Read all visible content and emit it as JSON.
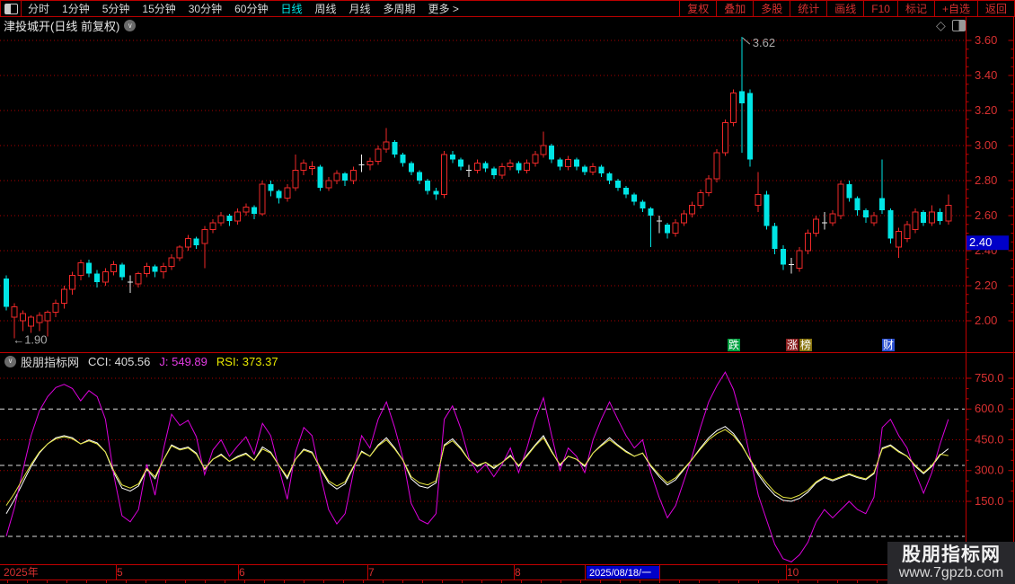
{
  "toolbar": {
    "left_items": [
      {
        "label": "分时",
        "active": false
      },
      {
        "label": "1分钟",
        "active": false
      },
      {
        "label": "5分钟",
        "active": false
      },
      {
        "label": "15分钟",
        "active": false
      },
      {
        "label": "30分钟",
        "active": false
      },
      {
        "label": "60分钟",
        "active": false
      },
      {
        "label": "日线",
        "active": true
      },
      {
        "label": "周线",
        "active": false
      },
      {
        "label": "月线",
        "active": false
      },
      {
        "label": "多周期",
        "active": false
      },
      {
        "label": "更多 >",
        "active": false
      }
    ],
    "right_items": [
      "复权",
      "叠加",
      "多股",
      "统计",
      "画线",
      "F10",
      "标记",
      "+自选",
      "返回"
    ]
  },
  "title_bar": {
    "title": "津投城开(日线 前复权)"
  },
  "price_panel": {
    "badges": [
      {
        "label": "跌",
        "bg": "#00a040"
      },
      {
        "label": "涨",
        "bg": "#8b1f1f"
      },
      {
        "label": "榜",
        "bg": "#8a7510"
      },
      {
        "label": "财",
        "bg": "#2a4fd0"
      }
    ],
    "last_price_box": "2.40"
  },
  "indicator_panel": {
    "header": {
      "source": "股朋指标网",
      "cci": "CCI: 405.56",
      "j": "J: 549.89",
      "rsi": "RSI: 373.37"
    }
  },
  "watermark": {
    "line1": "股朋指标网",
    "line2": "www.7gpzb.com"
  },
  "colors": {
    "up": "#ee2828",
    "down": "#00e5e5",
    "doji": "#eeeeee",
    "grid_red": "#aa0000",
    "axis_line": "#c00000",
    "axis_text": "#d83030",
    "ref_white": "#dddddd",
    "highlight_box": "#0000c8",
    "annotation": "#aaaaaa",
    "j_line": "#dd00dd",
    "rsi_line": "#e8e840",
    "cci_line": "#ffffff"
  },
  "chart_data": [
    {
      "type": "candlestick",
      "title": "津投城开 日线 前复权",
      "ylim": [
        1.83,
        3.64
      ],
      "y_ticks": [
        2.0,
        2.2,
        2.4,
        2.6,
        2.8,
        3.0,
        3.2,
        3.4,
        3.6
      ],
      "y_tick_labels": [
        "2.00",
        "2.20",
        "2.40",
        "2.60",
        "2.80",
        "3.00",
        "3.20",
        "3.40",
        "3.60"
      ],
      "grid": "dotted-red-horizontal",
      "annotations": {
        "high": {
          "text": "3.62",
          "price": 3.62,
          "bar": 89
        },
        "low": {
          "text": "←1.90",
          "price": 1.9,
          "bar": 1
        }
      },
      "last_price": {
        "label": "2.40",
        "value": 2.445
      },
      "x_axis": {
        "labels": [
          {
            "text": "2025年",
            "x": 4
          },
          {
            "text": "5",
            "x": 130
          },
          {
            "text": "6",
            "x": 266
          },
          {
            "text": "7",
            "x": 410
          },
          {
            "text": "8",
            "x": 573
          },
          {
            "text": "10",
            "x": 876
          }
        ],
        "highlight": {
          "text": "2025/08/18/一",
          "x": 653,
          "w": 81
        },
        "month_sep_x": [
          129,
          265,
          409,
          572,
          651,
          734,
          875,
          1020
        ]
      },
      "ohlc": [
        [
          2.24,
          2.26,
          2.06,
          2.08
        ],
        [
          2.02,
          2.1,
          1.9,
          2.08
        ],
        [
          2.0,
          2.06,
          1.94,
          2.04
        ],
        [
          1.97,
          2.03,
          1.93,
          2.02
        ],
        [
          1.99,
          2.05,
          1.94,
          2.03
        ],
        [
          2.0,
          2.06,
          1.91,
          2.05
        ],
        [
          2.05,
          2.12,
          2.02,
          2.1
        ],
        [
          2.1,
          2.2,
          2.07,
          2.18
        ],
        [
          2.18,
          2.28,
          2.15,
          2.26
        ],
        [
          2.26,
          2.35,
          2.23,
          2.33
        ],
        [
          2.33,
          2.35,
          2.25,
          2.27
        ],
        [
          2.27,
          2.29,
          2.19,
          2.22
        ],
        [
          2.22,
          2.3,
          2.2,
          2.28
        ],
        [
          2.28,
          2.34,
          2.26,
          2.32
        ],
        [
          2.32,
          2.33,
          2.23,
          2.25
        ],
        [
          2.22,
          2.26,
          2.16,
          2.22
        ],
        [
          2.21,
          2.28,
          2.19,
          2.27
        ],
        [
          2.27,
          2.33,
          2.25,
          2.31
        ],
        [
          2.31,
          2.32,
          2.25,
          2.28
        ],
        [
          2.28,
          2.33,
          2.24,
          2.31
        ],
        [
          2.31,
          2.38,
          2.29,
          2.36
        ],
        [
          2.36,
          2.43,
          2.34,
          2.42
        ],
        [
          2.42,
          2.49,
          2.4,
          2.47
        ],
        [
          2.47,
          2.48,
          2.41,
          2.43
        ],
        [
          2.44,
          2.54,
          2.3,
          2.52
        ],
        [
          2.52,
          2.58,
          2.5,
          2.56
        ],
        [
          2.56,
          2.62,
          2.54,
          2.6
        ],
        [
          2.6,
          2.61,
          2.54,
          2.57
        ],
        [
          2.57,
          2.64,
          2.55,
          2.62
        ],
        [
          2.62,
          2.67,
          2.6,
          2.65
        ],
        [
          2.65,
          2.66,
          2.58,
          2.61
        ],
        [
          2.61,
          2.8,
          2.6,
          2.78
        ],
        [
          2.78,
          2.8,
          2.71,
          2.74
        ],
        [
          2.74,
          2.75,
          2.67,
          2.7
        ],
        [
          2.7,
          2.78,
          2.68,
          2.76
        ],
        [
          2.76,
          2.95,
          2.74,
          2.86
        ],
        [
          2.86,
          2.92,
          2.83,
          2.9
        ],
        [
          2.87,
          2.91,
          2.83,
          2.88
        ],
        [
          2.88,
          2.89,
          2.74,
          2.76
        ],
        [
          2.76,
          2.82,
          2.74,
          2.8
        ],
        [
          2.8,
          2.86,
          2.78,
          2.84
        ],
        [
          2.84,
          2.85,
          2.77,
          2.8
        ],
        [
          2.8,
          2.88,
          2.78,
          2.86
        ],
        [
          2.89,
          2.95,
          2.85,
          2.89
        ],
        [
          2.89,
          2.93,
          2.86,
          2.91
        ],
        [
          2.91,
          3.0,
          2.89,
          2.98
        ],
        [
          2.98,
          3.1,
          2.96,
          3.02
        ],
        [
          3.02,
          3.03,
          2.93,
          2.95
        ],
        [
          2.95,
          2.96,
          2.88,
          2.9
        ],
        [
          2.9,
          2.91,
          2.83,
          2.85
        ],
        [
          2.85,
          2.86,
          2.78,
          2.8
        ],
        [
          2.8,
          2.81,
          2.72,
          2.74
        ],
        [
          2.74,
          2.76,
          2.69,
          2.72
        ],
        [
          2.72,
          2.97,
          2.7,
          2.95
        ],
        [
          2.95,
          2.97,
          2.9,
          2.92
        ],
        [
          2.92,
          2.93,
          2.86,
          2.88
        ],
        [
          2.86,
          2.89,
          2.82,
          2.86
        ],
        [
          2.86,
          2.92,
          2.84,
          2.9
        ],
        [
          2.9,
          2.91,
          2.85,
          2.87
        ],
        [
          2.87,
          2.88,
          2.81,
          2.83
        ],
        [
          2.83,
          2.9,
          2.81,
          2.88
        ],
        [
          2.88,
          2.92,
          2.86,
          2.9
        ],
        [
          2.9,
          2.91,
          2.84,
          2.86
        ],
        [
          2.86,
          2.92,
          2.84,
          2.9
        ],
        [
          2.9,
          2.97,
          2.88,
          2.95
        ],
        [
          2.95,
          3.08,
          2.93,
          3.0
        ],
        [
          3.0,
          3.01,
          2.9,
          2.92
        ],
        [
          2.92,
          2.93,
          2.86,
          2.88
        ],
        [
          2.88,
          2.94,
          2.86,
          2.92
        ],
        [
          2.92,
          2.93,
          2.86,
          2.88
        ],
        [
          2.88,
          2.89,
          2.83,
          2.85
        ],
        [
          2.85,
          2.9,
          2.83,
          2.88
        ],
        [
          2.88,
          2.89,
          2.82,
          2.84
        ],
        [
          2.84,
          2.85,
          2.78,
          2.8
        ],
        [
          2.8,
          2.81,
          2.74,
          2.76
        ],
        [
          2.76,
          2.77,
          2.7,
          2.72
        ],
        [
          2.72,
          2.73,
          2.66,
          2.68
        ],
        [
          2.68,
          2.69,
          2.62,
          2.64
        ],
        [
          2.64,
          2.65,
          2.42,
          2.6
        ],
        [
          2.57,
          2.6,
          2.5,
          2.57
        ],
        [
          2.55,
          2.56,
          2.47,
          2.5
        ],
        [
          2.5,
          2.58,
          2.48,
          2.56
        ],
        [
          2.56,
          2.63,
          2.54,
          2.61
        ],
        [
          2.61,
          2.68,
          2.59,
          2.66
        ],
        [
          2.66,
          2.75,
          2.64,
          2.73
        ],
        [
          2.73,
          2.83,
          2.71,
          2.81
        ],
        [
          2.81,
          2.98,
          2.79,
          2.96
        ],
        [
          2.96,
          3.15,
          2.94,
          3.13
        ],
        [
          3.13,
          3.32,
          3.11,
          3.3
        ],
        [
          3.31,
          3.62,
          2.96,
          3.24
        ],
        [
          3.3,
          3.32,
          2.88,
          2.92
        ],
        [
          2.66,
          2.85,
          2.62,
          2.72
        ],
        [
          2.72,
          2.74,
          2.52,
          2.54
        ],
        [
          2.54,
          2.56,
          2.38,
          2.41
        ],
        [
          2.41,
          2.43,
          2.29,
          2.32
        ],
        [
          2.32,
          2.36,
          2.27,
          2.32
        ],
        [
          2.3,
          2.42,
          2.28,
          2.4
        ],
        [
          2.4,
          2.52,
          2.38,
          2.5
        ],
        [
          2.5,
          2.6,
          2.48,
          2.58
        ],
        [
          2.56,
          2.62,
          2.52,
          2.56
        ],
        [
          2.56,
          2.63,
          2.54,
          2.61
        ],
        [
          2.6,
          2.8,
          2.58,
          2.78
        ],
        [
          2.78,
          2.8,
          2.68,
          2.7
        ],
        [
          2.7,
          2.71,
          2.6,
          2.63
        ],
        [
          2.63,
          2.64,
          2.56,
          2.59
        ],
        [
          2.56,
          2.62,
          2.54,
          2.6
        ],
        [
          2.7,
          2.92,
          2.61,
          2.63
        ],
        [
          2.63,
          2.64,
          2.44,
          2.47
        ],
        [
          2.42,
          2.53,
          2.36,
          2.51
        ],
        [
          2.47,
          2.57,
          2.45,
          2.55
        ],
        [
          2.52,
          2.64,
          2.5,
          2.62
        ],
        [
          2.62,
          2.63,
          2.54,
          2.56
        ],
        [
          2.56,
          2.66,
          2.54,
          2.62
        ],
        [
          2.62,
          2.64,
          2.55,
          2.57
        ],
        [
          2.57,
          2.72,
          2.55,
          2.66
        ]
      ]
    },
    {
      "type": "line",
      "title": "CCI / J / RSI indicator",
      "ylim": [
        -157,
        790
      ],
      "y_ticks": [
        150,
        300,
        450,
        600,
        750
      ],
      "y_tick_labels": [
        "150.0",
        "300.0",
        "450.0",
        "600.0",
        "750.0"
      ],
      "grid_red": [
        750,
        450,
        300,
        150
      ],
      "ref_white": [
        600,
        325,
        -21
      ],
      "legend_position": "top-left-header",
      "series": [
        {
          "name": "CCI",
          "color": "#ffffff",
          "values": [
            90,
            160,
            240,
            320,
            385,
            430,
            460,
            470,
            460,
            430,
            450,
            435,
            390,
            290,
            215,
            200,
            225,
            305,
            260,
            350,
            425,
            405,
            415,
            385,
            305,
            355,
            380,
            345,
            370,
            385,
            350,
            415,
            390,
            325,
            260,
            355,
            405,
            390,
            310,
            240,
            210,
            235,
            315,
            395,
            370,
            425,
            460,
            410,
            350,
            260,
            225,
            215,
            240,
            425,
            455,
            410,
            350,
            320,
            340,
            310,
            340,
            375,
            320,
            375,
            425,
            470,
            395,
            325,
            370,
            355,
            320,
            385,
            425,
            460,
            425,
            395,
            370,
            385,
            320,
            270,
            230,
            255,
            305,
            355,
            410,
            460,
            495,
            515,
            480,
            425,
            350,
            280,
            225,
            180,
            155,
            150,
            165,
            195,
            240,
            265,
            250,
            265,
            280,
            265,
            255,
            285,
            410,
            425,
            395,
            370,
            320,
            285,
            320,
            375,
            406
          ]
        },
        {
          "name": "J",
          "color": "#dd00dd",
          "values": [
            -20,
            120,
            300,
            470,
            590,
            660,
            705,
            720,
            700,
            640,
            690,
            660,
            550,
            280,
            80,
            50,
            110,
            330,
            180,
            400,
            575,
            520,
            545,
            465,
            280,
            400,
            450,
            370,
            420,
            465,
            380,
            530,
            470,
            310,
            160,
            390,
            510,
            470,
            280,
            110,
            40,
            90,
            290,
            470,
            410,
            550,
            635,
            510,
            360,
            140,
            60,
            40,
            90,
            550,
            615,
            505,
            360,
            290,
            330,
            270,
            330,
            410,
            290,
            410,
            550,
            655,
            470,
            300,
            410,
            370,
            290,
            450,
            550,
            635,
            550,
            470,
            410,
            450,
            290,
            170,
            70,
            130,
            250,
            370,
            510,
            635,
            715,
            780,
            695,
            550,
            370,
            180,
            60,
            -60,
            -130,
            -145,
            -110,
            -50,
            50,
            110,
            70,
            110,
            150,
            110,
            90,
            170,
            510,
            550,
            470,
            410,
            290,
            190,
            290,
            430,
            550
          ]
        },
        {
          "name": "RSI",
          "color": "#e8e840",
          "values": [
            130,
            190,
            260,
            330,
            390,
            430,
            455,
            465,
            455,
            430,
            445,
            430,
            390,
            300,
            230,
            215,
            235,
            310,
            270,
            350,
            420,
            400,
            410,
            380,
            310,
            355,
            375,
            345,
            365,
            380,
            350,
            405,
            385,
            325,
            270,
            355,
            400,
            385,
            315,
            250,
            225,
            245,
            320,
            390,
            370,
            420,
            450,
            405,
            350,
            270,
            240,
            230,
            250,
            420,
            445,
            405,
            350,
            325,
            340,
            315,
            340,
            370,
            325,
            370,
            420,
            460,
            390,
            330,
            370,
            355,
            325,
            385,
            420,
            450,
            420,
            390,
            370,
            385,
            325,
            280,
            240,
            265,
            310,
            355,
            405,
            450,
            480,
            500,
            470,
            420,
            355,
            290,
            240,
            195,
            170,
            165,
            180,
            205,
            245,
            270,
            255,
            270,
            285,
            270,
            260,
            290,
            405,
            420,
            390,
            370,
            325,
            290,
            325,
            380,
            373
          ]
        }
      ]
    }
  ]
}
